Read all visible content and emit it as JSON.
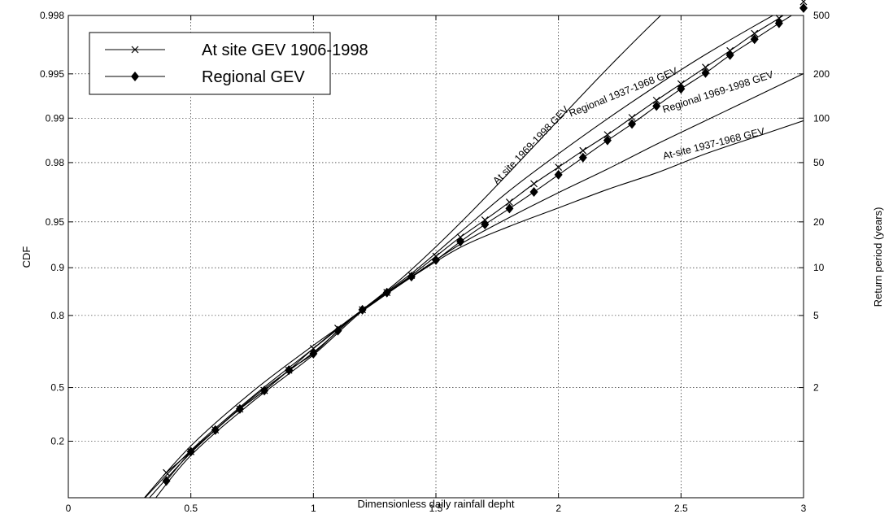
{
  "chart_data": {
    "type": "line",
    "xlabel": "Dimensionless daily rainfall depht",
    "ylabel": "CDF",
    "y2label": "Return period (years)",
    "xlim": [
      0,
      3
    ],
    "ylim_cdf": [
      0.02,
      0.998
    ],
    "x_ticks": [
      "0",
      "0.5",
      "1",
      "1.5",
      "2",
      "2.5",
      "3"
    ],
    "y_ticks": [
      {
        "p": 0.2,
        "label": "0.2"
      },
      {
        "p": 0.5,
        "label": "0.5"
      },
      {
        "p": 0.8,
        "label": "0.8"
      },
      {
        "p": 0.9,
        "label": "0.9"
      },
      {
        "p": 0.95,
        "label": "0.95"
      },
      {
        "p": 0.98,
        "label": "0.98"
      },
      {
        "p": 0.99,
        "label": "0.99"
      },
      {
        "p": 0.995,
        "label": "0.995"
      },
      {
        "p": 0.998,
        "label": "0.998"
      }
    ],
    "y2_ticks": [
      {
        "p": 0.5,
        "label": "2"
      },
      {
        "p": 0.8,
        "label": "5"
      },
      {
        "p": 0.9,
        "label": "10"
      },
      {
        "p": 0.95,
        "label": "20"
      },
      {
        "p": 0.98,
        "label": "50"
      },
      {
        "p": 0.99,
        "label": "100"
      },
      {
        "p": 0.995,
        "label": "200"
      },
      {
        "p": 0.998,
        "label": "500"
      }
    ],
    "grid": true,
    "legend_position": "top-left",
    "series": [
      {
        "name": "At site GEV 1906-1998",
        "marker": "x",
        "x": [
          0.4,
          0.5,
          0.6,
          0.7,
          0.8,
          0.9,
          1.0,
          1.1,
          1.2,
          1.3,
          1.4,
          1.5,
          1.6,
          1.7,
          1.8,
          1.9,
          2.0,
          2.1,
          2.2,
          2.3,
          2.4,
          2.5,
          2.6,
          2.7,
          2.8,
          2.9,
          3.0
        ],
        "y": [
          -0.97,
          -0.64,
          -0.3,
          0.03,
          0.32,
          0.64,
          0.98,
          1.3,
          1.59,
          1.86,
          2.13,
          2.43,
          2.73,
          3.0,
          3.28,
          3.57,
          3.83,
          4.09,
          4.34,
          4.61,
          4.88,
          5.14,
          5.4,
          5.66,
          5.93,
          6.17,
          6.43
        ]
      },
      {
        "name": "Regional GEV",
        "marker": "diamond",
        "x": [
          0.4,
          0.5,
          0.6,
          0.7,
          0.8,
          0.9,
          1.0,
          1.1,
          1.2,
          1.3,
          1.4,
          1.5,
          1.6,
          1.7,
          1.8,
          1.9,
          2.0,
          2.1,
          2.2,
          2.3,
          2.4,
          2.5,
          2.6,
          2.7,
          2.8,
          2.9,
          3.0
        ],
        "y": [
          -1.1,
          -0.64,
          -0.3,
          0.03,
          0.32,
          0.64,
          0.9,
          1.26,
          1.59,
          1.86,
          2.11,
          2.37,
          2.66,
          2.93,
          3.18,
          3.44,
          3.71,
          3.98,
          4.25,
          4.51,
          4.79,
          5.06,
          5.31,
          5.59,
          5.84,
          6.09,
          6.33
        ]
      },
      {
        "name": "At site 1969-1998 GEV",
        "marker": "none",
        "x": [
          0.28,
          0.5,
          0.75,
          1.0,
          1.2,
          1.35,
          1.5,
          1.65,
          1.8,
          2.0,
          2.2,
          2.4,
          2.6,
          2.7,
          2.8,
          2.88
        ],
        "y": [
          -1.5,
          -0.62,
          0.22,
          0.98,
          1.59,
          2.05,
          2.58,
          3.15,
          3.75,
          4.57,
          5.38,
          6.15,
          6.87,
          7.17,
          7.48,
          7.75
        ]
      },
      {
        "name": "Regional 1937-1968 GEV",
        "marker": "none",
        "x": [
          0.3,
          0.5,
          0.75,
          1.0,
          1.2,
          1.4,
          1.6,
          1.8,
          2.0,
          2.2,
          2.4,
          2.6,
          2.8,
          3.0
        ],
        "y": [
          -1.5,
          -0.66,
          0.2,
          0.92,
          1.59,
          2.16,
          2.81,
          3.46,
          4.04,
          4.59,
          5.11,
          5.6,
          6.05,
          6.48
        ]
      },
      {
        "name": "Regional 1969-1998 GEV",
        "marker": "none",
        "x": [
          0.33,
          0.5,
          0.75,
          1.0,
          1.2,
          1.4,
          1.6,
          1.8,
          2.0,
          2.2,
          2.4,
          2.6,
          2.8,
          3.0
        ],
        "y": [
          -1.5,
          -0.7,
          0.14,
          0.88,
          1.57,
          2.11,
          2.62,
          3.04,
          3.43,
          3.8,
          4.19,
          4.56,
          4.93,
          5.3
        ]
      },
      {
        "name": "At-site 1937-1968 GEV",
        "marker": "none",
        "x": [
          0.28,
          0.5,
          0.75,
          1.0,
          1.2,
          1.4,
          1.6,
          1.8,
          2.0,
          2.2,
          2.4,
          2.6,
          2.8,
          3.0
        ],
        "y": [
          -1.5,
          -0.55,
          0.3,
          1.03,
          1.57,
          2.1,
          2.57,
          2.9,
          3.19,
          3.48,
          3.74,
          4.04,
          4.3,
          4.56
        ]
      }
    ],
    "annotations": [
      {
        "text": "At site 1969-1998 GEV",
        "x": 1.75,
        "y": 3.55,
        "angle": -46
      },
      {
        "text": "Regional 1937-1968 GEV",
        "x": 2.05,
        "y": 4.62,
        "angle": -22
      },
      {
        "text": "Regional 1969-1998 GEV",
        "x": 2.43,
        "y": 4.68,
        "angle": -18
      },
      {
        "text": "At-site 1937-1968 GEV",
        "x": 2.43,
        "y": 3.95,
        "angle": -14
      }
    ]
  }
}
